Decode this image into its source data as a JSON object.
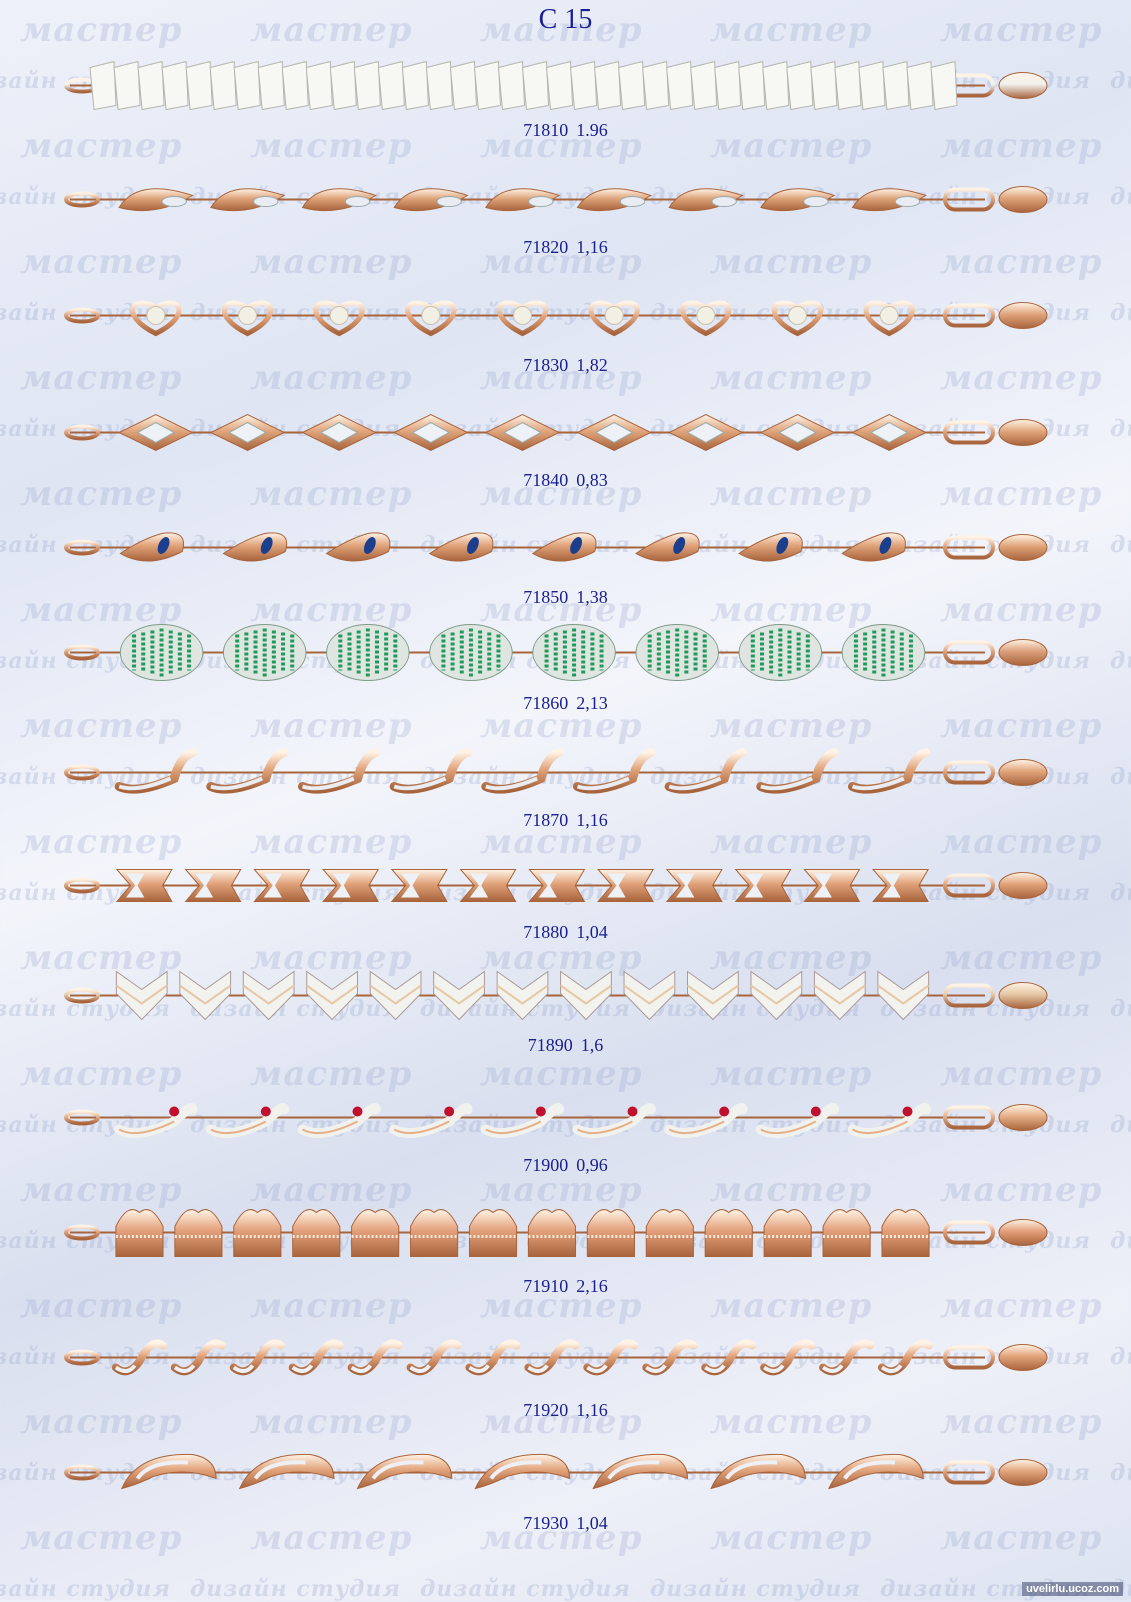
{
  "page": {
    "title": "С 15",
    "credit": "uvelirlu.ucoz.com"
  },
  "watermarks": {
    "brand": "мастер",
    "studio": "дизайн студия"
  },
  "items": [
    {
      "code": "71810",
      "weight": "1.96",
      "style": "silver-plates",
      "metal": "#f1f1ec",
      "stone": ""
    },
    {
      "code": "71820",
      "weight": "1,16",
      "style": "leaf",
      "metal": "#dea37a",
      "stone": ""
    },
    {
      "code": "71830",
      "weight": "1,82",
      "style": "heart-pearl",
      "metal": "#e0a47c",
      "stone": "#f2efe4"
    },
    {
      "code": "71840",
      "weight": "0,83",
      "style": "diamond",
      "metal": "#e1a67d",
      "stone": ""
    },
    {
      "code": "71850",
      "weight": "1,38",
      "style": "tulip-sapphire",
      "metal": "#e0a37a",
      "stone": "#1b3f8c"
    },
    {
      "code": "71860",
      "weight": "2,13",
      "style": "emerald-bead",
      "metal": "#dba07a",
      "stone": "#1f9a58"
    },
    {
      "code": "71870",
      "weight": "1,16",
      "style": "swan",
      "metal": "#e1a57b",
      "stone": ""
    },
    {
      "code": "71880",
      "weight": "1,04",
      "style": "chevron",
      "metal": "#e0a27a",
      "stone": ""
    },
    {
      "code": "71890",
      "weight": "1,6",
      "style": "arrow-white",
      "metal": "#e6c8a6",
      "stone": ""
    },
    {
      "code": "71900",
      "weight": "0,96",
      "style": "ruby-wave",
      "metal": "#e5b088",
      "stone": "#c0102e"
    },
    {
      "code": "71910",
      "weight": "2,16",
      "style": "crown",
      "metal": "#e3a07a",
      "stone": ""
    },
    {
      "code": "71920",
      "weight": "1,16",
      "style": "s-wave",
      "metal": "#e2a37b",
      "stone": ""
    },
    {
      "code": "71930",
      "weight": "1,04",
      "style": "hook-wave",
      "metal": "#e1a47c",
      "stone": ""
    }
  ]
}
